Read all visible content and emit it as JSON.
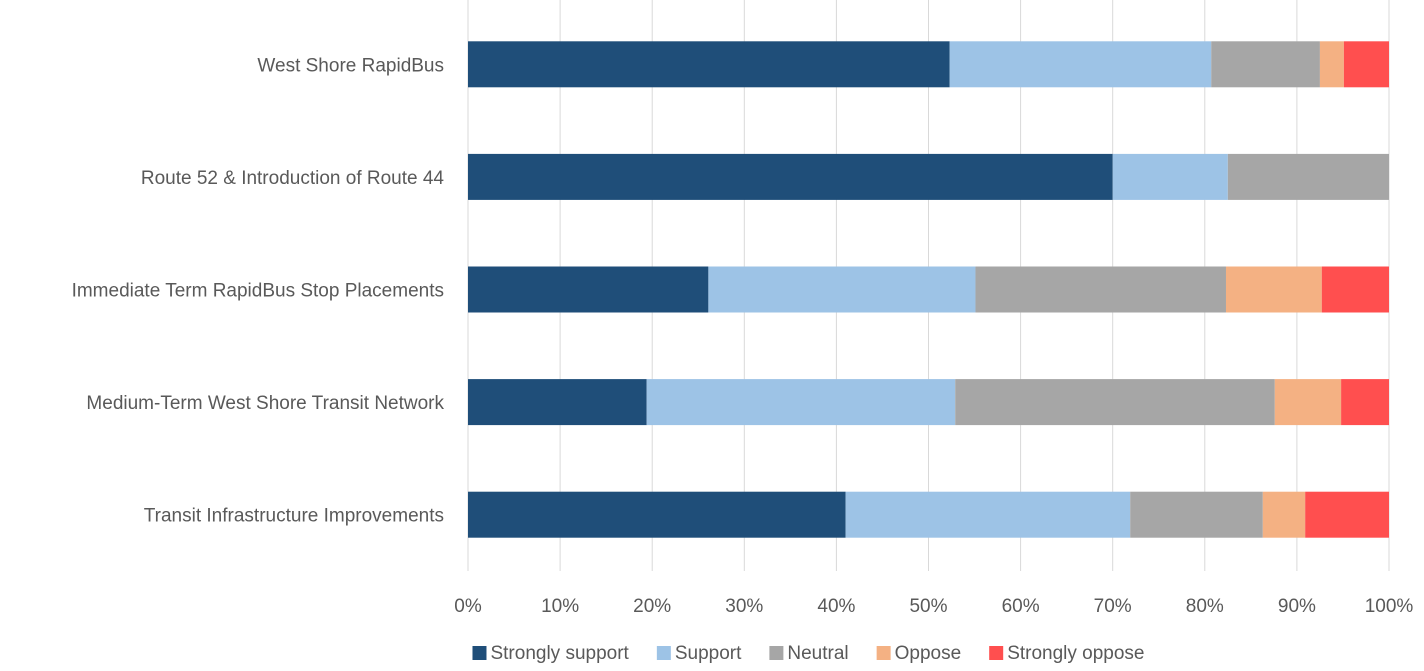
{
  "chart_data": {
    "type": "bar",
    "orientation": "horizontal",
    "stacked": "percent",
    "categories": [
      "West Shore RapidBus",
      "Route 52 & Introduction of Route 44",
      "Immediate Term RapidBus Stop Placements",
      "Medium-Term West Shore Transit Network",
      "Transit Infrastructure Improvements"
    ],
    "series": [
      {
        "name": "Strongly support",
        "color": "#1f4e79",
        "values": [
          52.3,
          70.0,
          26.1,
          19.4,
          41.0
        ]
      },
      {
        "name": "Support",
        "color": "#9dc3e6",
        "values": [
          28.4,
          12.5,
          29.0,
          33.5,
          30.9
        ]
      },
      {
        "name": "Neutral",
        "color": "#a6a6a6",
        "values": [
          11.8,
          17.5,
          27.2,
          34.7,
          14.4
        ]
      },
      {
        "name": "Oppose",
        "color": "#f4b183",
        "values": [
          2.6,
          0.0,
          10.4,
          7.2,
          4.6
        ]
      },
      {
        "name": "Strongly oppose",
        "color": "#ff4f4f",
        "values": [
          4.9,
          0.0,
          7.3,
          5.2,
          9.1
        ]
      }
    ],
    "x_ticks": [
      "0%",
      "10%",
      "20%",
      "30%",
      "40%",
      "50%",
      "60%",
      "70%",
      "80%",
      "90%",
      "100%"
    ],
    "xlim": [
      0,
      100
    ],
    "grid": true,
    "legend_position": "bottom"
  }
}
